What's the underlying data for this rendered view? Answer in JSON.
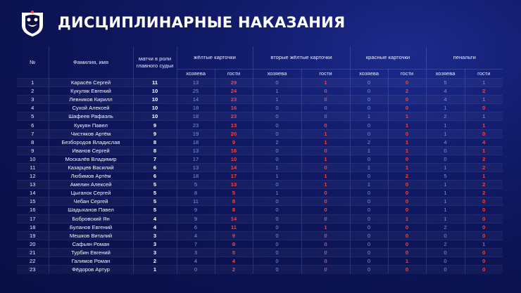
{
  "title": "ДИСЦИПЛИНАРНЫЕ НАКАЗАНИЯ",
  "colors": {
    "home": "#7f92e0",
    "away": "#ff3f36",
    "background": "#0b1250"
  },
  "headers": {
    "num": "№",
    "name": "Фамилия, имя",
    "matches": "матчи в роли главного судьи",
    "yellow": "жёлтые карточки",
    "second_yellow": "вторые жёлтые карточки",
    "red": "красные карточки",
    "penalty": "пенальти",
    "home": "хозяева",
    "away": "гости"
  },
  "rows": [
    {
      "n": "1",
      "name": "Карасёв Сергей",
      "m": "11",
      "yh": "13",
      "ya": "29",
      "sh": "0",
      "sa": "1",
      "rh": "0",
      "ra": "0",
      "ph": "5",
      "pa": "1"
    },
    {
      "n": "2",
      "name": "Кукуляк Евгений",
      "m": "10",
      "yh": "25",
      "ya": "24",
      "sh": "1",
      "sa": "0",
      "rh": "0",
      "ra": "2",
      "ph": "4",
      "pa": "2"
    },
    {
      "n": "3",
      "name": "Левников Кирилл",
      "m": "10",
      "yh": "14",
      "ya": "23",
      "sh": "1",
      "sa": "0",
      "rh": "0",
      "ra": "0",
      "ph": "4",
      "pa": "1"
    },
    {
      "n": "4",
      "name": "Сухой Алексей",
      "m": "10",
      "yh": "18",
      "ya": "16",
      "sh": "0",
      "sa": "0",
      "rh": "0",
      "ra": "0",
      "ph": "1",
      "pa": "0"
    },
    {
      "n": "5",
      "name": "Шафеев Рафаэль",
      "m": "10",
      "yh": "18",
      "ya": "23",
      "sh": "0",
      "sa": "0",
      "rh": "1",
      "ra": "1",
      "ph": "2",
      "pa": "1"
    },
    {
      "n": "6",
      "name": "Кукуян Павел",
      "m": "9",
      "yh": "23",
      "ya": "13",
      "sh": "0",
      "sa": "0",
      "rh": "0",
      "ra": "1",
      "ph": "1",
      "pa": "1"
    },
    {
      "n": "7",
      "name": "Чистяков Артём",
      "m": "9",
      "yh": "19",
      "ya": "20",
      "sh": "0",
      "sa": "1",
      "rh": "0",
      "ra": "0",
      "ph": "1",
      "pa": "0"
    },
    {
      "n": "8",
      "name": "Безбородов Владислав",
      "m": "8",
      "yh": "18",
      "ya": "9",
      "sh": "2",
      "sa": "1",
      "rh": "2",
      "ra": "1",
      "ph": "4",
      "pa": "4"
    },
    {
      "n": "9",
      "name": "Иванов Сергей",
      "m": "8",
      "yh": "13",
      "ya": "16",
      "sh": "0",
      "sa": "0",
      "rh": "1",
      "ra": "1",
      "ph": "0",
      "pa": "1"
    },
    {
      "n": "10",
      "name": "Москалёв Владимир",
      "m": "7",
      "yh": "17",
      "ya": "10",
      "sh": "0",
      "sa": "1",
      "rh": "0",
      "ra": "0",
      "ph": "0",
      "pa": "2"
    },
    {
      "n": "11",
      "name": "Казарцев Василий",
      "m": "6",
      "yh": "13",
      "ya": "14",
      "sh": "1",
      "sa": "0",
      "rh": "1",
      "ra": "1",
      "ph": "1",
      "pa": "2"
    },
    {
      "n": "12",
      "name": "Любимов Артём",
      "m": "6",
      "yh": "18",
      "ya": "17",
      "sh": "1",
      "sa": "1",
      "rh": "0",
      "ra": "2",
      "ph": "5",
      "pa": "1"
    },
    {
      "n": "13",
      "name": "Амелин Алексей",
      "m": "5",
      "yh": "5",
      "ya": "13",
      "sh": "0",
      "sa": "1",
      "rh": "1",
      "ra": "0",
      "ph": "1",
      "pa": "2"
    },
    {
      "n": "14",
      "name": "Цыганок Сергей",
      "m": "5",
      "yh": "8",
      "ya": "5",
      "sh": "1",
      "sa": "0",
      "rh": "0",
      "ra": "0",
      "ph": "1",
      "pa": "2"
    },
    {
      "n": "15",
      "name": "Чебан Сергей",
      "m": "5",
      "yh": "11",
      "ya": "8",
      "sh": "0",
      "sa": "0",
      "rh": "0",
      "ra": "0",
      "ph": "1",
      "pa": "0"
    },
    {
      "n": "16",
      "name": "Шадыханов Павел",
      "m": "5",
      "yh": "9",
      "ya": "8",
      "sh": "0",
      "sa": "0",
      "rh": "0",
      "ra": "0",
      "ph": "1",
      "pa": "0"
    },
    {
      "n": "17",
      "name": "Бобровский Ян",
      "m": "4",
      "yh": "9",
      "ya": "14",
      "sh": "0",
      "sa": "0",
      "rh": "0",
      "ra": "1",
      "ph": "1",
      "pa": "0"
    },
    {
      "n": "18",
      "name": "Буланов Евгений",
      "m": "4",
      "yh": "6",
      "ya": "11",
      "sh": "0",
      "sa": "1",
      "rh": "0",
      "ra": "0",
      "ph": "2",
      "pa": "0"
    },
    {
      "n": "19",
      "name": "Мешков Виталий",
      "m": "3",
      "yh": "4",
      "ya": "9",
      "sh": "0",
      "sa": "0",
      "rh": "0",
      "ra": "0",
      "ph": "0",
      "pa": "0"
    },
    {
      "n": "20",
      "name": "Сафьян Роман",
      "m": "3",
      "yh": "7",
      "ya": "8",
      "sh": "0",
      "sa": "0",
      "rh": "0",
      "ra": "0",
      "ph": "2",
      "pa": "1"
    },
    {
      "n": "21",
      "name": "Турбин Евгений",
      "m": "3",
      "yh": "3",
      "ya": "5",
      "sh": "0",
      "sa": "0",
      "rh": "0",
      "ra": "0",
      "ph": "0",
      "pa": "0"
    },
    {
      "n": "22",
      "name": "Галимов Роман",
      "m": "2",
      "yh": "4",
      "ya": "4",
      "sh": "0",
      "sa": "0",
      "rh": "0",
      "ra": "1",
      "ph": "0",
      "pa": "0"
    },
    {
      "n": "23",
      "name": "Фёдоров Артур",
      "m": "1",
      "yh": "0",
      "ya": "2",
      "sh": "0",
      "sa": "0",
      "rh": "0",
      "ra": "0",
      "ph": "0",
      "pa": "0"
    }
  ]
}
